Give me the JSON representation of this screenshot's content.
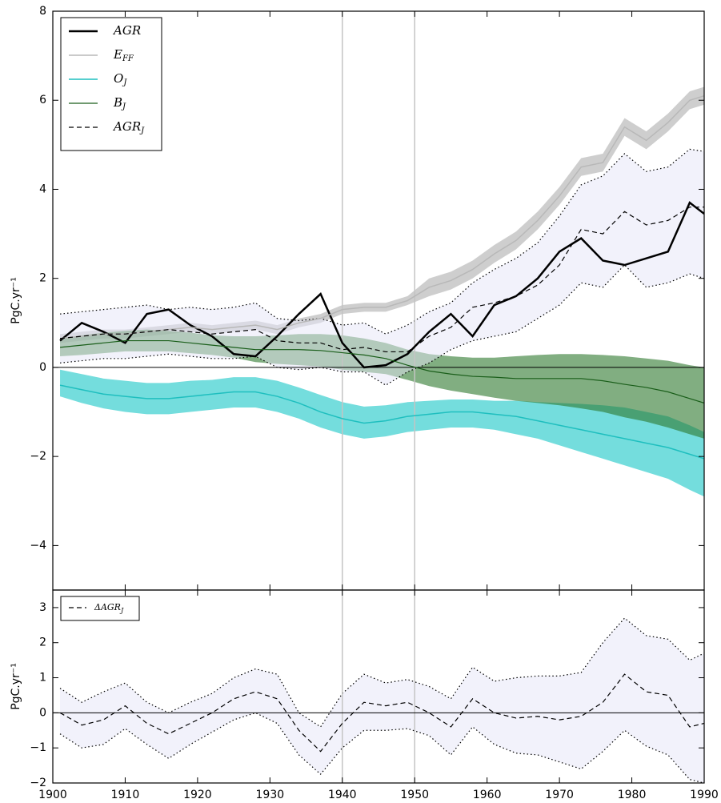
{
  "chart_data": [
    {
      "type": "line",
      "ylabel": "PgC.yr⁻¹",
      "x": [
        1901,
        1904,
        1907,
        1910,
        1913,
        1916,
        1919,
        1922,
        1925,
        1928,
        1931,
        1934,
        1937,
        1940,
        1943,
        1946,
        1949,
        1952,
        1955,
        1958,
        1961,
        1964,
        1967,
        1970,
        1973,
        1976,
        1979,
        1982,
        1985,
        1988,
        1990
      ],
      "xlim": [
        1900,
        1990
      ],
      "xticks": [
        1900,
        1910,
        1920,
        1930,
        1940,
        1950,
        1960,
        1970,
        1980,
        1990
      ],
      "ylim": [
        -5,
        8
      ],
      "yticks": [
        {
          "value": -4,
          "label": "−4"
        },
        {
          "value": -2,
          "label": "−2"
        },
        0,
        2,
        4,
        6,
        8
      ],
      "vlines": [
        1940,
        1950
      ],
      "hline": 0,
      "legend": "upper left",
      "series": [
        {
          "name": "AGR",
          "color": "#000000",
          "width": 2.5,
          "style": "solid",
          "values": [
            0.6,
            1.0,
            0.8,
            0.55,
            1.2,
            1.3,
            0.95,
            0.7,
            0.3,
            0.25,
            0.7,
            1.2,
            1.65,
            0.55,
            0.0,
            0.05,
            0.3,
            0.8,
            1.2,
            0.7,
            1.4,
            1.6,
            2.0,
            2.6,
            2.9,
            2.4,
            2.3,
            2.45,
            2.6,
            3.7,
            3.45
          ]
        },
        {
          "name": "E",
          "sub": "FF",
          "color": "#b8b8b8",
          "width": 1.5,
          "style": "solid",
          "band_color": "rgba(190,190,190,0.75)",
          "values": [
            0.65,
            0.7,
            0.75,
            0.75,
            0.8,
            0.85,
            0.9,
            0.85,
            0.9,
            0.95,
            0.85,
            1.0,
            1.1,
            1.3,
            1.35,
            1.35,
            1.5,
            1.8,
            1.95,
            2.2,
            2.55,
            2.85,
            3.3,
            3.85,
            4.5,
            4.6,
            5.4,
            5.1,
            5.5,
            6.0,
            6.1
          ],
          "band_upper": [
            0.75,
            0.8,
            0.85,
            0.85,
            0.9,
            0.95,
            1.0,
            0.95,
            1.0,
            1.05,
            0.95,
            1.1,
            1.2,
            1.4,
            1.45,
            1.45,
            1.6,
            2.0,
            2.15,
            2.4,
            2.75,
            3.05,
            3.5,
            4.05,
            4.7,
            4.8,
            5.6,
            5.3,
            5.7,
            6.2,
            6.3
          ],
          "band_lower": [
            0.55,
            0.6,
            0.65,
            0.65,
            0.7,
            0.75,
            0.8,
            0.75,
            0.8,
            0.85,
            0.75,
            0.9,
            1.0,
            1.2,
            1.25,
            1.25,
            1.4,
            1.6,
            1.75,
            2.0,
            2.35,
            2.65,
            3.1,
            3.65,
            4.3,
            4.4,
            5.2,
            4.9,
            5.3,
            5.8,
            5.9
          ]
        },
        {
          "name": "O",
          "sub": "J",
          "color": "#1fbfbf",
          "width": 1.5,
          "style": "solid",
          "band_color": "rgba(70,210,210,0.75)",
          "values": [
            -0.4,
            -0.5,
            -0.6,
            -0.65,
            -0.7,
            -0.7,
            -0.65,
            -0.6,
            -0.55,
            -0.55,
            -0.65,
            -0.8,
            -1.0,
            -1.15,
            -1.25,
            -1.2,
            -1.1,
            -1.05,
            -1.0,
            -1.0,
            -1.05,
            -1.1,
            -1.2,
            -1.3,
            -1.4,
            -1.5,
            -1.6,
            -1.7,
            -1.8,
            -1.95,
            -2.05
          ],
          "band_upper": [
            -0.05,
            -0.15,
            -0.25,
            -0.3,
            -0.35,
            -0.35,
            -0.3,
            -0.28,
            -0.22,
            -0.22,
            -0.3,
            -0.45,
            -0.62,
            -0.78,
            -0.88,
            -0.85,
            -0.78,
            -0.75,
            -0.72,
            -0.72,
            -0.75,
            -0.75,
            -0.78,
            -0.8,
            -0.82,
            -0.85,
            -0.9,
            -1.0,
            -1.1,
            -1.3,
            -1.45
          ],
          "band_lower": [
            -0.65,
            -0.8,
            -0.92,
            -1.0,
            -1.05,
            -1.05,
            -1.0,
            -0.95,
            -0.9,
            -0.9,
            -1.0,
            -1.15,
            -1.35,
            -1.5,
            -1.6,
            -1.55,
            -1.45,
            -1.4,
            -1.35,
            -1.35,
            -1.4,
            -1.5,
            -1.6,
            -1.75,
            -1.9,
            -2.05,
            -2.2,
            -2.35,
            -2.5,
            -2.75,
            -2.9
          ]
        },
        {
          "name": "B",
          "sub": "J",
          "color": "#1a5e1a",
          "width": 1.2,
          "style": "solid",
          "band_color": "rgba(45,120,45,0.6)",
          "values": [
            0.45,
            0.5,
            0.55,
            0.6,
            0.6,
            0.6,
            0.55,
            0.5,
            0.45,
            0.4,
            0.4,
            0.4,
            0.38,
            0.33,
            0.28,
            0.2,
            0.05,
            -0.08,
            -0.15,
            -0.2,
            -0.22,
            -0.25,
            -0.25,
            -0.25,
            -0.25,
            -0.3,
            -0.38,
            -0.45,
            -0.55,
            -0.7,
            -0.8
          ],
          "band_upper": [
            0.65,
            0.72,
            0.78,
            0.82,
            0.85,
            0.82,
            0.78,
            0.72,
            0.7,
            0.7,
            0.72,
            0.75,
            0.75,
            0.72,
            0.65,
            0.55,
            0.4,
            0.3,
            0.25,
            0.22,
            0.22,
            0.25,
            0.28,
            0.3,
            0.3,
            0.28,
            0.25,
            0.2,
            0.15,
            0.05,
            0.0
          ],
          "band_lower": [
            0.25,
            0.28,
            0.32,
            0.36,
            0.36,
            0.36,
            0.32,
            0.28,
            0.22,
            0.12,
            0.08,
            0.05,
            0.02,
            -0.05,
            -0.1,
            -0.15,
            -0.28,
            -0.42,
            -0.52,
            -0.6,
            -0.68,
            -0.75,
            -0.8,
            -0.85,
            -0.92,
            -1.0,
            -1.12,
            -1.22,
            -1.35,
            -1.5,
            -1.6
          ]
        },
        {
          "name": "AGR",
          "sub": "J",
          "color": "#000000",
          "width": 1.2,
          "style": "dashed",
          "band_color": "rgba(230,230,248,0.5)",
          "band_edge": "dotted",
          "values": [
            0.65,
            0.7,
            0.75,
            0.75,
            0.8,
            0.85,
            0.8,
            0.75,
            0.8,
            0.85,
            0.6,
            0.55,
            0.55,
            0.4,
            0.45,
            0.35,
            0.35,
            0.7,
            0.9,
            1.35,
            1.45,
            1.6,
            1.85,
            2.3,
            3.1,
            3.0,
            3.5,
            3.2,
            3.3,
            3.6,
            3.6
          ],
          "band_upper": [
            1.2,
            1.25,
            1.3,
            1.35,
            1.4,
            1.3,
            1.35,
            1.3,
            1.35,
            1.45,
            1.1,
            1.05,
            1.1,
            0.95,
            1.0,
            0.75,
            0.95,
            1.25,
            1.45,
            1.9,
            2.2,
            2.45,
            2.8,
            3.4,
            4.1,
            4.3,
            4.8,
            4.4,
            4.5,
            4.9,
            4.85
          ],
          "band_lower": [
            0.1,
            0.15,
            0.2,
            0.2,
            0.25,
            0.3,
            0.25,
            0.2,
            0.2,
            0.25,
            0.0,
            -0.05,
            0.0,
            -0.1,
            -0.1,
            -0.4,
            -0.1,
            0.1,
            0.4,
            0.6,
            0.7,
            0.8,
            1.1,
            1.4,
            1.9,
            1.8,
            2.3,
            1.8,
            1.9,
            2.1,
            2.0
          ]
        }
      ]
    },
    {
      "type": "line",
      "ylabel": "PgC.yr⁻¹",
      "x": [
        1901,
        1904,
        1907,
        1910,
        1913,
        1916,
        1919,
        1922,
        1925,
        1928,
        1931,
        1934,
        1937,
        1940,
        1943,
        1946,
        1949,
        1952,
        1955,
        1958,
        1961,
        1964,
        1967,
        1970,
        1973,
        1976,
        1979,
        1982,
        1985,
        1988,
        1990
      ],
      "xlim": [
        1900,
        1990
      ],
      "xticks": [
        1900,
        1910,
        1920,
        1930,
        1940,
        1950,
        1960,
        1970,
        1980,
        1990
      ],
      "ylim": [
        -2,
        3.5
      ],
      "yticks": [
        {
          "value": -2,
          "label": "−2"
        },
        {
          "value": -1,
          "label": "−1"
        },
        0,
        1,
        2,
        3
      ],
      "vlines": [
        1940,
        1950
      ],
      "hline": 0,
      "legend": "upper left",
      "series": [
        {
          "name": "ΔAGR",
          "sub": "J",
          "color": "#000000",
          "width": 1.2,
          "style": "dashed",
          "band_color": "rgba(230,230,248,0.5)",
          "band_edge": "dotted",
          "values": [
            0.0,
            -0.35,
            -0.2,
            0.2,
            -0.3,
            -0.6,
            -0.3,
            0.0,
            0.4,
            0.6,
            0.4,
            -0.5,
            -1.1,
            -0.3,
            0.3,
            0.2,
            0.3,
            0.0,
            -0.4,
            0.4,
            0.0,
            -0.15,
            -0.1,
            -0.2,
            -0.1,
            0.3,
            1.1,
            0.6,
            0.5,
            -0.4,
            -0.3
          ],
          "band_upper": [
            0.7,
            0.3,
            0.6,
            0.85,
            0.3,
            0.0,
            0.3,
            0.55,
            1.0,
            1.25,
            1.1,
            0.0,
            -0.4,
            0.55,
            1.1,
            0.85,
            0.95,
            0.75,
            0.4,
            1.3,
            0.9,
            1.0,
            1.05,
            1.05,
            1.15,
            2.0,
            2.7,
            2.2,
            2.1,
            1.5,
            1.7
          ],
          "band_lower": [
            -0.6,
            -1.0,
            -0.9,
            -0.45,
            -0.9,
            -1.3,
            -0.9,
            -0.55,
            -0.2,
            0.0,
            -0.3,
            -1.2,
            -1.75,
            -1.0,
            -0.5,
            -0.5,
            -0.45,
            -0.65,
            -1.2,
            -0.4,
            -0.9,
            -1.15,
            -1.2,
            -1.4,
            -1.6,
            -1.1,
            -0.5,
            -0.95,
            -1.2,
            -1.9,
            -2.0
          ]
        }
      ]
    }
  ]
}
